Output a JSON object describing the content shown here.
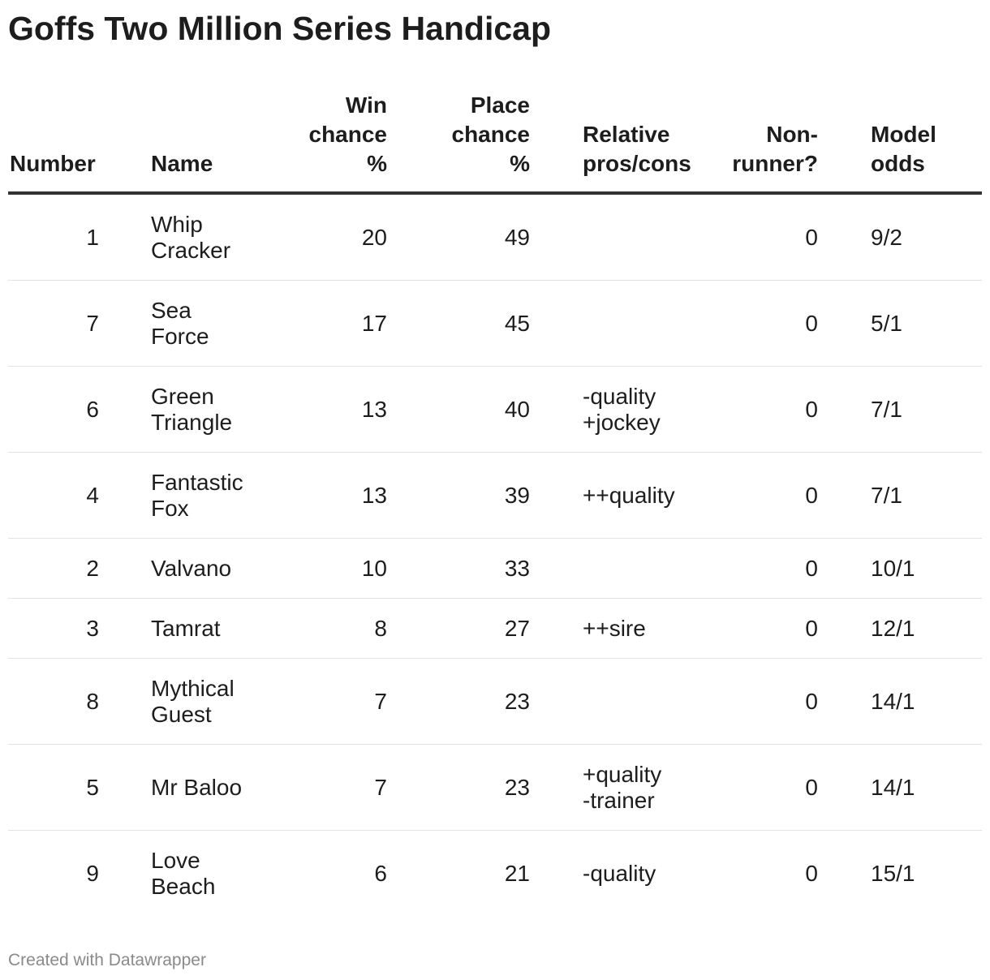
{
  "title": "Goffs Two Million Series Handicap",
  "footer": "Created with Datawrapper",
  "columns": [
    {
      "key": "number",
      "label": [
        "Number"
      ]
    },
    {
      "key": "name",
      "label": [
        "Name"
      ]
    },
    {
      "key": "win",
      "label": [
        "Win",
        "chance",
        "%"
      ]
    },
    {
      "key": "place",
      "label": [
        "Place",
        "chance",
        "%"
      ]
    },
    {
      "key": "relative",
      "label": [
        "Relative",
        "pros/cons"
      ]
    },
    {
      "key": "nonrunner",
      "label": [
        "Non-",
        "runner?"
      ]
    },
    {
      "key": "odds",
      "label": [
        "Model",
        "odds"
      ]
    }
  ],
  "chart_data": {
    "type": "table",
    "title": "Goffs Two Million Series Handicap",
    "columns": [
      "Number",
      "Name",
      "Win chance %",
      "Place chance %",
      "Relative pros/cons",
      "Non-runner?",
      "Model odds"
    ],
    "rows": [
      {
        "number": "1",
        "name": [
          "Whip",
          "Cracker"
        ],
        "win": "20",
        "place": "49",
        "relative": [],
        "nonrunner": "0",
        "odds": "9/2"
      },
      {
        "number": "7",
        "name": [
          "Sea",
          "Force"
        ],
        "win": "17",
        "place": "45",
        "relative": [],
        "nonrunner": "0",
        "odds": "5/1"
      },
      {
        "number": "6",
        "name": [
          "Green",
          "Triangle"
        ],
        "win": "13",
        "place": "40",
        "relative": [
          "-quality",
          "+jockey"
        ],
        "nonrunner": "0",
        "odds": "7/1"
      },
      {
        "number": "4",
        "name": [
          "Fantastic",
          "Fox"
        ],
        "win": "13",
        "place": "39",
        "relative": [
          "++quality"
        ],
        "nonrunner": "0",
        "odds": "7/1"
      },
      {
        "number": "2",
        "name": [
          "Valvano"
        ],
        "win": "10",
        "place": "33",
        "relative": [],
        "nonrunner": "0",
        "odds": "10/1"
      },
      {
        "number": "3",
        "name": [
          "Tamrat"
        ],
        "win": "8",
        "place": "27",
        "relative": [
          "++sire"
        ],
        "nonrunner": "0",
        "odds": "12/1"
      },
      {
        "number": "8",
        "name": [
          "Mythical",
          "Guest"
        ],
        "win": "7",
        "place": "23",
        "relative": [],
        "nonrunner": "0",
        "odds": "14/1"
      },
      {
        "number": "5",
        "name": [
          "Mr Baloo"
        ],
        "win": "7",
        "place": "23",
        "relative": [
          "+quality",
          "-trainer"
        ],
        "nonrunner": "0",
        "odds": "14/1"
      },
      {
        "number": "9",
        "name": [
          "Love",
          "Beach"
        ],
        "win": "6",
        "place": "21",
        "relative": [
          "-quality"
        ],
        "nonrunner": "0",
        "odds": "15/1"
      }
    ]
  }
}
